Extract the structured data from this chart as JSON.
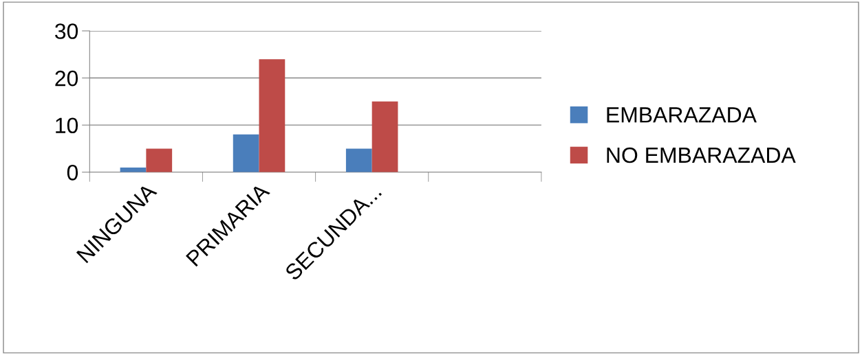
{
  "chart_data": {
    "type": "bar",
    "categories": [
      "NINGUNA",
      "PRIMARIA",
      "SECUNDA...",
      null
    ],
    "series": [
      {
        "name": "EMBARAZADA",
        "color": "#4a7ebb",
        "values": [
          1,
          8,
          5,
          null
        ]
      },
      {
        "name": "NO EMBARAZADA",
        "color": "#be4b48",
        "values": [
          5,
          24,
          15,
          null
        ]
      }
    ],
    "ylim": [
      0,
      30
    ],
    "yticks": [
      0,
      10,
      20,
      30
    ],
    "grid": "y",
    "legend": "right"
  }
}
